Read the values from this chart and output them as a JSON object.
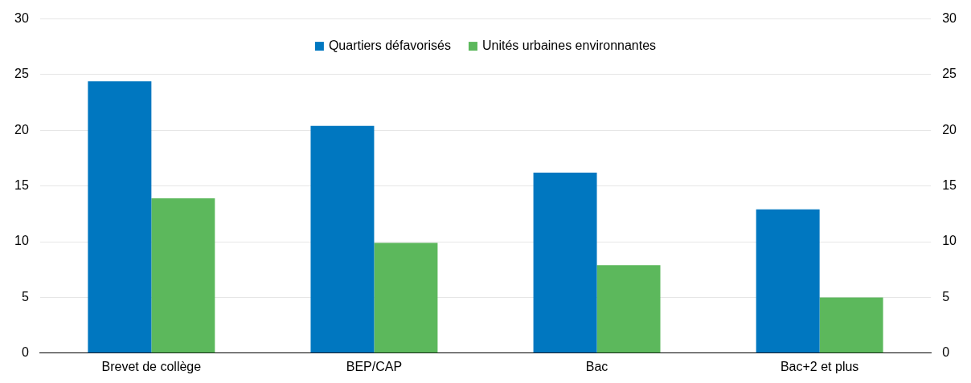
{
  "chart_data": {
    "type": "bar",
    "categories": [
      "Brevet de collège",
      "BEP/CAP",
      "Bac",
      "Bac+2 et plus"
    ],
    "series": [
      {
        "name": "Quartiers défavorisés",
        "color": "#0077c0",
        "values": [
          24.4,
          20.4,
          16.2,
          12.9
        ]
      },
      {
        "name": "Unités urbaines environnantes",
        "color": "#5cb85c",
        "values": [
          13.9,
          9.9,
          7.9,
          5.0
        ]
      }
    ],
    "ylim": [
      0,
      30
    ],
    "yticks": [
      0,
      5,
      10,
      15,
      20,
      25,
      30
    ],
    "y2lim": [
      0,
      30
    ],
    "y2ticks": [
      0,
      5,
      10,
      15,
      20,
      25,
      30
    ],
    "grid": "y",
    "legend": "top"
  }
}
